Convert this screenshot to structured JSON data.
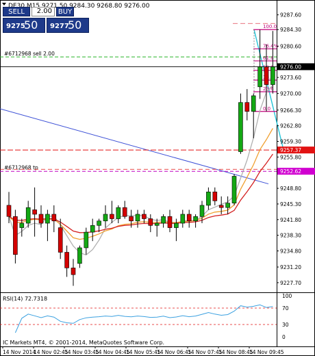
{
  "header": "DE30,M15  9271.50 9284.30 9268.80 9276.00",
  "trade_panel": {
    "sell_label": "SELL",
    "buy_label": "BUY",
    "lot": "2.00",
    "bid_small": "9275",
    "bid_big": "50",
    "ask_small": "9277",
    "ask_big": "50"
  },
  "orders": {
    "sell_label": "#6712968 sell 2.00",
    "tp_label": "#6712968 tp"
  },
  "price_axis": {
    "ticks": [
      "9287.60",
      "9284.30",
      "9280.60",
      "9276.00",
      "9273.60",
      "9270.00",
      "9266.30",
      "9262.80",
      "9259.30",
      "9255.80",
      "9252.30",
      "9248.80",
      "9245.30",
      "9241.80",
      "9238.30",
      "9234.80",
      "9231.20",
      "9227.70"
    ],
    "current_price": "9276.00",
    "level_tags": [
      "9257.37",
      "9252.62"
    ]
  },
  "fibonacci": {
    "levels": [
      {
        "label": "100.0",
        "price": 9284.3
      },
      {
        "label": "76.4%",
        "price": 9280.0
      },
      {
        "label": "61.8",
        "price": 9277.3
      },
      {
        "label": "50.0",
        "price": 9275.2
      },
      {
        "label": "38.2",
        "price": 9273.0
      },
      {
        "label": "23.6",
        "price": 9270.4
      },
      {
        "label": "0.0",
        "price": 9266.0
      }
    ]
  },
  "rsi": {
    "title": "RSI(14) 72.7318",
    "ticks": [
      "100",
      "70",
      "30",
      "0"
    ],
    "levels": [
      70,
      30
    ]
  },
  "time_axis": [
    "14 Nov 2014",
    "14 Nov 02:45",
    "14 Nov 03:45",
    "14 Nov 04:45",
    "14 Nov 05:45",
    "14 Nov 06:45",
    "14 Nov 07:45",
    "14 Nov 08:45",
    "14 Nov 09:45"
  ],
  "footer": "IC Markets MT4, © 2001-2014, MetaQuotes Software Corp.",
  "colors": {
    "bull": "#14a814",
    "bear": "#d40000",
    "blue_trend": "#3b4fd6",
    "cyan_trend": "#22c4d8",
    "fib": "#c0007a",
    "order_green": "#28b428",
    "order_red": "#e21212",
    "ma_red": "#d42020",
    "ma_orange": "#f0a030",
    "ma_gray": "#b0b0b0"
  },
  "chart_data": {
    "type": "candlestick",
    "title": "DE30,M15",
    "ylim": [
      9226,
      9290
    ],
    "candles": [
      {
        "o": 9245.0,
        "h": 9248.0,
        "l": 9241.0,
        "c": 9242.5
      },
      {
        "o": 9242.5,
        "h": 9244.0,
        "l": 9232.0,
        "c": 9234.0
      },
      {
        "o": 9240.0,
        "h": 9242.0,
        "l": 9238.0,
        "c": 9241.0
      },
      {
        "o": 9241.0,
        "h": 9246.0,
        "l": 9240.0,
        "c": 9244.5
      },
      {
        "o": 9244.0,
        "h": 9249.0,
        "l": 9238.0,
        "c": 9243.0
      },
      {
        "o": 9243.0,
        "h": 9245.0,
        "l": 9240.0,
        "c": 9241.0
      },
      {
        "o": 9241.0,
        "h": 9244.0,
        "l": 9237.0,
        "c": 9243.0
      },
      {
        "o": 9243.0,
        "h": 9245.0,
        "l": 9239.0,
        "c": 9241.5
      },
      {
        "o": 9240.0,
        "h": 9242.0,
        "l": 9233.0,
        "c": 9234.5
      },
      {
        "o": 9234.5,
        "h": 9236.0,
        "l": 9229.0,
        "c": 9231.0
      },
      {
        "o": 9231.0,
        "h": 9233.0,
        "l": 9227.0,
        "c": 9229.5
      },
      {
        "o": 9232.0,
        "h": 9236.0,
        "l": 9231.0,
        "c": 9235.5
      },
      {
        "o": 9235.5,
        "h": 9240.0,
        "l": 9234.0,
        "c": 9239.0
      },
      {
        "o": 9239.0,
        "h": 9242.0,
        "l": 9237.0,
        "c": 9240.5
      },
      {
        "o": 9240.5,
        "h": 9242.0,
        "l": 9239.0,
        "c": 9241.5
      },
      {
        "o": 9241.5,
        "h": 9245.0,
        "l": 9240.0,
        "c": 9243.0
      },
      {
        "o": 9243.0,
        "h": 9246.0,
        "l": 9241.0,
        "c": 9242.0
      },
      {
        "o": 9242.0,
        "h": 9245.0,
        "l": 9241.0,
        "c": 9244.5
      },
      {
        "o": 9244.5,
        "h": 9246.0,
        "l": 9242.0,
        "c": 9242.5
      },
      {
        "o": 9242.5,
        "h": 9244.0,
        "l": 9240.0,
        "c": 9241.5
      },
      {
        "o": 9241.5,
        "h": 9244.0,
        "l": 9240.0,
        "c": 9243.0
      },
      {
        "o": 9243.0,
        "h": 9244.0,
        "l": 9241.0,
        "c": 9242.0
      },
      {
        "o": 9242.0,
        "h": 9243.0,
        "l": 9239.0,
        "c": 9240.5
      },
      {
        "o": 9240.5,
        "h": 9242.0,
        "l": 9238.0,
        "c": 9241.0
      },
      {
        "o": 9241.0,
        "h": 9243.0,
        "l": 9240.0,
        "c": 9242.5
      },
      {
        "o": 9242.5,
        "h": 9244.0,
        "l": 9239.0,
        "c": 9240.0
      },
      {
        "o": 9240.0,
        "h": 9242.0,
        "l": 9237.0,
        "c": 9241.0
      },
      {
        "o": 9241.0,
        "h": 9244.0,
        "l": 9240.0,
        "c": 9243.0
      },
      {
        "o": 9243.0,
        "h": 9244.0,
        "l": 9240.0,
        "c": 9241.5
      },
      {
        "o": 9241.5,
        "h": 9243.0,
        "l": 9240.0,
        "c": 9242.5
      },
      {
        "o": 9242.5,
        "h": 9246.0,
        "l": 9241.0,
        "c": 9245.0
      },
      {
        "o": 9245.0,
        "h": 9249.0,
        "l": 9244.0,
        "c": 9248.0
      },
      {
        "o": 9248.0,
        "h": 9249.0,
        "l": 9245.0,
        "c": 9246.0
      },
      {
        "o": 9245.0,
        "h": 9247.0,
        "l": 9243.0,
        "c": 9244.5
      },
      {
        "o": 9244.5,
        "h": 9247.0,
        "l": 9243.0,
        "c": 9245.5
      },
      {
        "o": 9245.5,
        "h": 9252.0,
        "l": 9245.0,
        "c": 9251.5
      },
      {
        "o": 9257.0,
        "h": 9270.0,
        "l": 9256.5,
        "c": 9268.0
      },
      {
        "o": 9268.0,
        "h": 9271.0,
        "l": 9264.0,
        "c": 9266.0
      },
      {
        "o": 9266.0,
        "h": 9270.0,
        "l": 9260.0,
        "c": 9269.5
      },
      {
        "o": 9271.5,
        "h": 9284.3,
        "l": 9268.8,
        "c": 9276.0
      },
      {
        "o": 9276.0,
        "h": 9281.0,
        "l": 9266.0,
        "c": 9272.0
      },
      {
        "o": 9272.0,
        "h": 9284.0,
        "l": 9270.0,
        "c": 9276.0
      }
    ]
  }
}
